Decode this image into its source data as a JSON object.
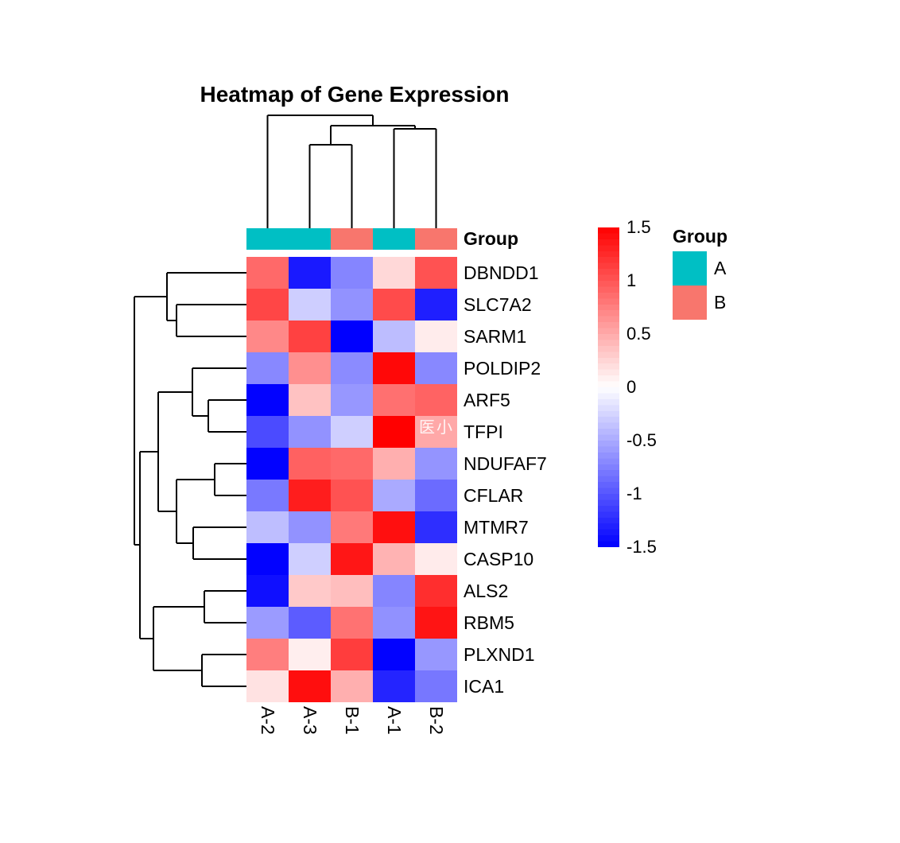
{
  "chart_data": {
    "type": "heatmap",
    "title": "Heatmap of Gene Expression",
    "rows": [
      "DBNDD1",
      "SLC7A2",
      "SARM1",
      "POLDIP2",
      "ARF5",
      "TFPI",
      "NDUFAF7",
      "CFLAR",
      "MTMR7",
      "CASP10",
      "ALS2",
      "RBM5",
      "PLXND1",
      "ICA1"
    ],
    "columns": [
      "A-2",
      "A-3",
      "B-1",
      "A-1",
      "B-2"
    ],
    "column_groups": [
      "A",
      "A",
      "B",
      "A",
      "B"
    ],
    "annotation_label": "Group",
    "values": [
      [
        0.88,
        -1.35,
        -0.72,
        0.23,
        1.02
      ],
      [
        1.09,
        -0.29,
        -0.64,
        1.06,
        -1.32
      ],
      [
        0.7,
        1.12,
        -1.5,
        -0.39,
        0.11
      ],
      [
        -0.7,
        0.66,
        -0.68,
        1.45,
        -0.7
      ],
      [
        -1.49,
        0.36,
        -0.61,
        0.84,
        0.92
      ],
      [
        -1.06,
        -0.64,
        -0.28,
        1.5,
        0.51
      ],
      [
        -1.49,
        0.93,
        0.88,
        0.47,
        -0.63
      ],
      [
        -0.79,
        1.33,
        1.02,
        -0.5,
        -0.87
      ],
      [
        -0.38,
        -0.64,
        0.79,
        1.41,
        -1.23
      ],
      [
        -1.49,
        -0.28,
        1.37,
        0.45,
        0.12
      ],
      [
        -1.41,
        0.32,
        0.38,
        -0.72,
        1.23
      ],
      [
        -0.59,
        -0.96,
        0.83,
        -0.65,
        1.38
      ],
      [
        0.76,
        0.1,
        1.14,
        -1.49,
        -0.61
      ],
      [
        0.17,
        1.42,
        0.47,
        -1.29,
        -0.8
      ]
    ],
    "value_range": [
      -1.5,
      1.5
    ],
    "colormap": {
      "negative": "#0000FF",
      "zero": "#FFFFFF",
      "positive": "#FF0000"
    },
    "colorbar_ticks": [
      "1.5",
      "1",
      "0.5",
      "0",
      "-0.5",
      "-1",
      "-1.5"
    ],
    "legend": {
      "title": "Group",
      "entries": [
        {
          "label": "A",
          "color": "#00BFC4"
        },
        {
          "label": "B",
          "color": "#F8766D"
        }
      ]
    },
    "clustered_rows": true,
    "clustered_columns": true
  },
  "watermark": "医小"
}
